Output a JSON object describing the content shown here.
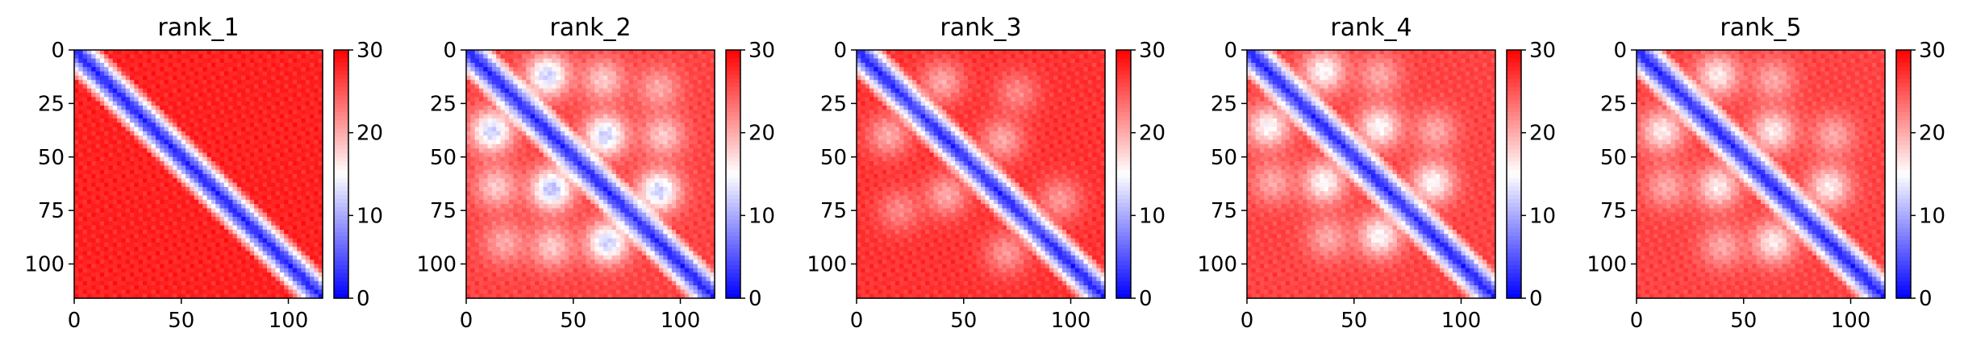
{
  "chart_data": [
    {
      "type": "heatmap",
      "title": "rank_1",
      "matrix_size": 116,
      "xlim": [
        0,
        116
      ],
      "ylim": [
        116,
        0
      ],
      "x_ticks": [
        0,
        50,
        100
      ],
      "y_ticks": [
        0,
        25,
        50,
        75,
        100
      ],
      "colorbar": {
        "min": 0,
        "max": 30,
        "ticks": [
          0,
          10,
          20,
          30
        ],
        "colormap": "bwr"
      },
      "diagonal_band_value": 2,
      "background_value": 28,
      "off_diagonal_blobs": []
    },
    {
      "type": "heatmap",
      "title": "rank_2",
      "matrix_size": 116,
      "xlim": [
        0,
        116
      ],
      "ylim": [
        116,
        0
      ],
      "x_ticks": [
        0,
        50,
        100
      ],
      "y_ticks": [
        0,
        25,
        50,
        75,
        100
      ],
      "colorbar": {
        "min": 0,
        "max": 30,
        "ticks": [
          0,
          10,
          20,
          30
        ],
        "colormap": "bwr"
      },
      "diagonal_band_value": 2,
      "background_value": 26,
      "off_diagonal_blobs": [
        {
          "i": 12,
          "j": 38,
          "value": 12
        },
        {
          "i": 38,
          "j": 12,
          "value": 12
        },
        {
          "i": 40,
          "j": 65,
          "value": 12
        },
        {
          "i": 65,
          "j": 40,
          "value": 11
        },
        {
          "i": 66,
          "j": 90,
          "value": 12
        },
        {
          "i": 90,
          "j": 66,
          "value": 12
        },
        {
          "i": 14,
          "j": 64,
          "value": 18
        },
        {
          "i": 64,
          "j": 14,
          "value": 18
        },
        {
          "i": 40,
          "j": 92,
          "value": 18
        },
        {
          "i": 92,
          "j": 40,
          "value": 18
        },
        {
          "i": 18,
          "j": 90,
          "value": 20
        },
        {
          "i": 90,
          "j": 18,
          "value": 20
        }
      ]
    },
    {
      "type": "heatmap",
      "title": "rank_3",
      "matrix_size": 116,
      "xlim": [
        0,
        116
      ],
      "ylim": [
        116,
        0
      ],
      "x_ticks": [
        0,
        50,
        100
      ],
      "y_ticks": [
        0,
        25,
        50,
        75,
        100
      ],
      "colorbar": {
        "min": 0,
        "max": 30,
        "ticks": [
          0,
          10,
          20,
          30
        ],
        "colormap": "bwr"
      },
      "diagonal_band_value": 2,
      "background_value": 27,
      "off_diagonal_blobs": [
        {
          "i": 15,
          "j": 40,
          "value": 20
        },
        {
          "i": 40,
          "j": 15,
          "value": 20
        },
        {
          "i": 42,
          "j": 68,
          "value": 20
        },
        {
          "i": 68,
          "j": 42,
          "value": 20
        },
        {
          "i": 70,
          "j": 95,
          "value": 21
        },
        {
          "i": 95,
          "j": 70,
          "value": 21
        },
        {
          "i": 20,
          "j": 75,
          "value": 22
        },
        {
          "i": 75,
          "j": 20,
          "value": 22
        }
      ]
    },
    {
      "type": "heatmap",
      "title": "rank_4",
      "matrix_size": 116,
      "xlim": [
        0,
        116
      ],
      "ylim": [
        116,
        0
      ],
      "x_ticks": [
        0,
        50,
        100
      ],
      "y_ticks": [
        0,
        25,
        50,
        75,
        100
      ],
      "colorbar": {
        "min": 0,
        "max": 30,
        "ticks": [
          0,
          10,
          20,
          30
        ],
        "colormap": "bwr"
      },
      "diagonal_band_value": 2,
      "background_value": 26,
      "off_diagonal_blobs": [
        {
          "i": 10,
          "j": 36,
          "value": 15
        },
        {
          "i": 36,
          "j": 10,
          "value": 15
        },
        {
          "i": 36,
          "j": 62,
          "value": 15
        },
        {
          "i": 62,
          "j": 36,
          "value": 15
        },
        {
          "i": 62,
          "j": 87,
          "value": 15
        },
        {
          "i": 87,
          "j": 62,
          "value": 15
        },
        {
          "i": 12,
          "j": 62,
          "value": 20
        },
        {
          "i": 62,
          "j": 12,
          "value": 20
        },
        {
          "i": 38,
          "j": 88,
          "value": 20
        },
        {
          "i": 88,
          "j": 38,
          "value": 20
        }
      ]
    },
    {
      "type": "heatmap",
      "title": "rank_5",
      "matrix_size": 116,
      "xlim": [
        0,
        116
      ],
      "ylim": [
        116,
        0
      ],
      "x_ticks": [
        0,
        50,
        100
      ],
      "y_ticks": [
        0,
        25,
        50,
        75,
        100
      ],
      "colorbar": {
        "min": 0,
        "max": 30,
        "ticks": [
          0,
          10,
          20,
          30
        ],
        "colormap": "bwr"
      },
      "diagonal_band_value": 2,
      "background_value": 26,
      "off_diagonal_blobs": [
        {
          "i": 12,
          "j": 38,
          "value": 16
        },
        {
          "i": 38,
          "j": 12,
          "value": 16
        },
        {
          "i": 38,
          "j": 64,
          "value": 16
        },
        {
          "i": 64,
          "j": 38,
          "value": 16
        },
        {
          "i": 64,
          "j": 90,
          "value": 16
        },
        {
          "i": 90,
          "j": 64,
          "value": 16
        },
        {
          "i": 14,
          "j": 64,
          "value": 20
        },
        {
          "i": 64,
          "j": 14,
          "value": 20
        },
        {
          "i": 40,
          "j": 92,
          "value": 20
        },
        {
          "i": 92,
          "j": 40,
          "value": 20
        }
      ]
    }
  ]
}
